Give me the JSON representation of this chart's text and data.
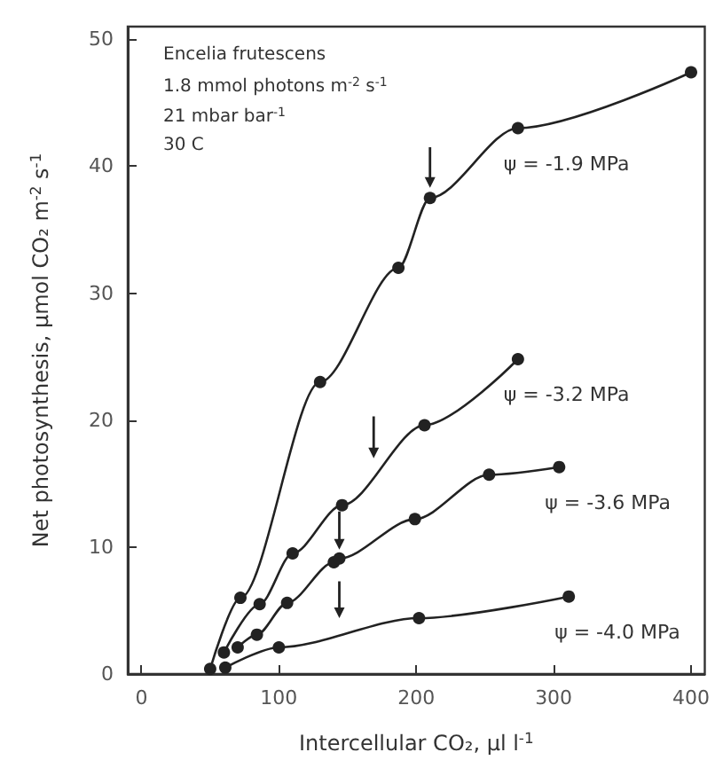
{
  "chart_data": {
    "type": "line",
    "xlabel": "Intercellular CO₂, μl l$^{-1}$",
    "ylabel": "Net photosynthesis, μmol CO₂ m$^{-2}$ s$^{-1}$",
    "annotations": [
      "Encelia frutescens",
      "1.8 mmol photons m$^{-2}$ s$^{-1}$",
      "21 mbar bar$^{-1}$",
      "30 C"
    ],
    "series": [
      {
        "name": "ψ = -1.9 MPa",
        "color": "#222222",
        "x": [
          50,
          72,
          130,
          187,
          210,
          274,
          400
        ],
        "values": [
          0.4,
          6,
          23,
          32,
          37.5,
          43,
          47.4
        ]
      },
      {
        "name": "ψ = -3.2 MPa",
        "color": "#222222",
        "x": [
          60,
          86,
          110,
          146,
          206,
          274
        ],
        "values": [
          1.7,
          5.5,
          9.5,
          13.3,
          19.6,
          24.8
        ]
      },
      {
        "name": "ψ = -3.6 MPa",
        "color": "#222222",
        "x": [
          70,
          84,
          106,
          140,
          144,
          199,
          253,
          304
        ],
        "values": [
          2.1,
          3.1,
          5.6,
          8.8,
          9.1,
          12.2,
          15.7,
          16.3
        ]
      },
      {
        "name": "ψ = -4.0 MPa",
        "color": "#222222",
        "x": [
          61,
          100,
          202,
          311
        ],
        "values": [
          0.5,
          2.1,
          4.4,
          6.1
        ]
      }
    ],
    "xlim": [
      -10,
      410
    ],
    "xticks": [
      0,
      100,
      200,
      300,
      400
    ],
    "ylim": [
      0,
      51
    ],
    "yticks": [
      0,
      10,
      20,
      30,
      40,
      50
    ],
    "grid": false,
    "legend": false,
    "marker": "circle",
    "line_style": "solid"
  }
}
